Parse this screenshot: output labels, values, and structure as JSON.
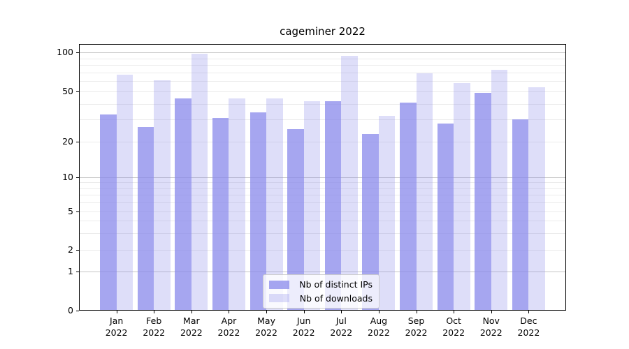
{
  "colors": {
    "bar_base": "#8888eb",
    "series_ips": "rgba(136,136,235,0.75)",
    "series_downloads": "rgba(136,136,235,0.28)",
    "major_grid": "#c6c6c6",
    "minor_grid": "#ebebeb",
    "axis_spine": "#000000",
    "legend_border": "#cccccc"
  },
  "chart_data": {
    "type": "bar",
    "title": "cageminer 2022",
    "categories": [
      "Jan 2022",
      "Feb 2022",
      "Mar 2022",
      "Apr 2022",
      "May 2022",
      "Jun 2022",
      "Jul 2022",
      "Aug 2022",
      "Sep 2022",
      "Oct 2022",
      "Nov 2022",
      "Dec 2022"
    ],
    "series": [
      {
        "name": "Nb of distinct IPs",
        "color_key": "series_ips",
        "values": [
          33,
          26,
          44,
          31,
          34,
          25,
          42,
          23,
          41,
          28,
          49,
          30
        ]
      },
      {
        "name": "Nb of downloads",
        "color_key": "series_downloads",
        "values": [
          67,
          61,
          97,
          44,
          44,
          42,
          94,
          32,
          69,
          58,
          73,
          54
        ]
      }
    ],
    "xlabel": "",
    "ylabel": "",
    "yscale": "symlog",
    "ylim": [
      0,
      115
    ],
    "y_ticks": [
      100,
      50,
      20,
      10,
      5,
      2,
      1,
      0
    ],
    "y_major_gridlines": [
      1,
      10,
      100
    ],
    "y_minor_gridlines": [
      2,
      3,
      4,
      5,
      6,
      7,
      8,
      9,
      20,
      30,
      40,
      50,
      60,
      70,
      80,
      90
    ],
    "grid": true,
    "legend_position": "lower center"
  }
}
